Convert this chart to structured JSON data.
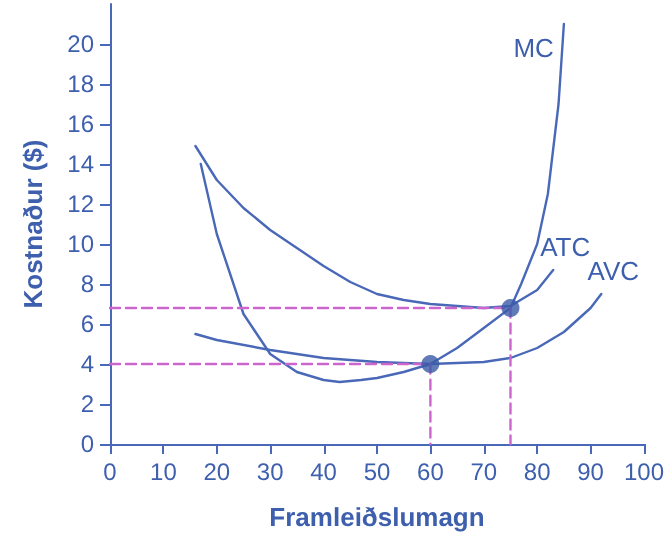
{
  "chart_data": {
    "type": "line",
    "xlabel": "Framleiðslumagn",
    "ylabel": "Kostnaður ($)",
    "xlim": [
      0,
      100
    ],
    "ylim": [
      0,
      22
    ],
    "xticks": [
      0,
      10,
      20,
      30,
      40,
      50,
      60,
      70,
      80,
      90,
      100
    ],
    "yticks": [
      0,
      2,
      4,
      6,
      8,
      10,
      12,
      14,
      16,
      18,
      20
    ],
    "grid": false,
    "legend": false,
    "marker": "none",
    "series": [
      {
        "name": "MC",
        "color": "#4a68b8",
        "x": [
          17,
          20,
          25,
          30,
          35,
          40,
          43,
          47,
          50,
          55,
          60,
          65,
          70,
          75,
          77,
          80,
          82,
          84,
          85
        ],
        "values": [
          14,
          10.5,
          6.5,
          4.5,
          3.6,
          3.2,
          3.1,
          3.2,
          3.3,
          3.6,
          4,
          4.8,
          5.8,
          6.8,
          8,
          10,
          12.5,
          17,
          21
        ]
      },
      {
        "name": "ATC",
        "color": "#4a68b8",
        "x": [
          16,
          20,
          25,
          30,
          35,
          40,
          45,
          50,
          55,
          60,
          65,
          70,
          75,
          80,
          83
        ],
        "values": [
          14.9,
          13.2,
          11.8,
          10.7,
          9.8,
          8.9,
          8.1,
          7.5,
          7.2,
          7,
          6.9,
          6.8,
          6.9,
          7.7,
          8.7
        ]
      },
      {
        "name": "AVC",
        "color": "#4a68b8",
        "x": [
          16,
          20,
          30,
          40,
          50,
          60,
          70,
          75,
          80,
          85,
          90,
          92
        ],
        "values": [
          5.5,
          5.2,
          4.7,
          4.3,
          4.1,
          4,
          4.1,
          4.3,
          4.8,
          5.6,
          6.8,
          7.5
        ]
      },
      {
        "type": "line",
        "color": "#cc66cc",
        "line_style": "dashed",
        "x": [
          0,
          75,
          75
        ],
        "values": [
          6.8,
          6.8,
          0
        ]
      },
      {
        "type": "line",
        "color": "#cc66cc",
        "line_style": "dashed",
        "x": [
          0,
          60,
          60
        ],
        "values": [
          4,
          4,
          0
        ]
      },
      {
        "type": "scatter",
        "color": "#3a5aa8",
        "marker": "circle",
        "x": [
          60,
          75
        ],
        "values": [
          4,
          6.8
        ]
      }
    ]
  }
}
